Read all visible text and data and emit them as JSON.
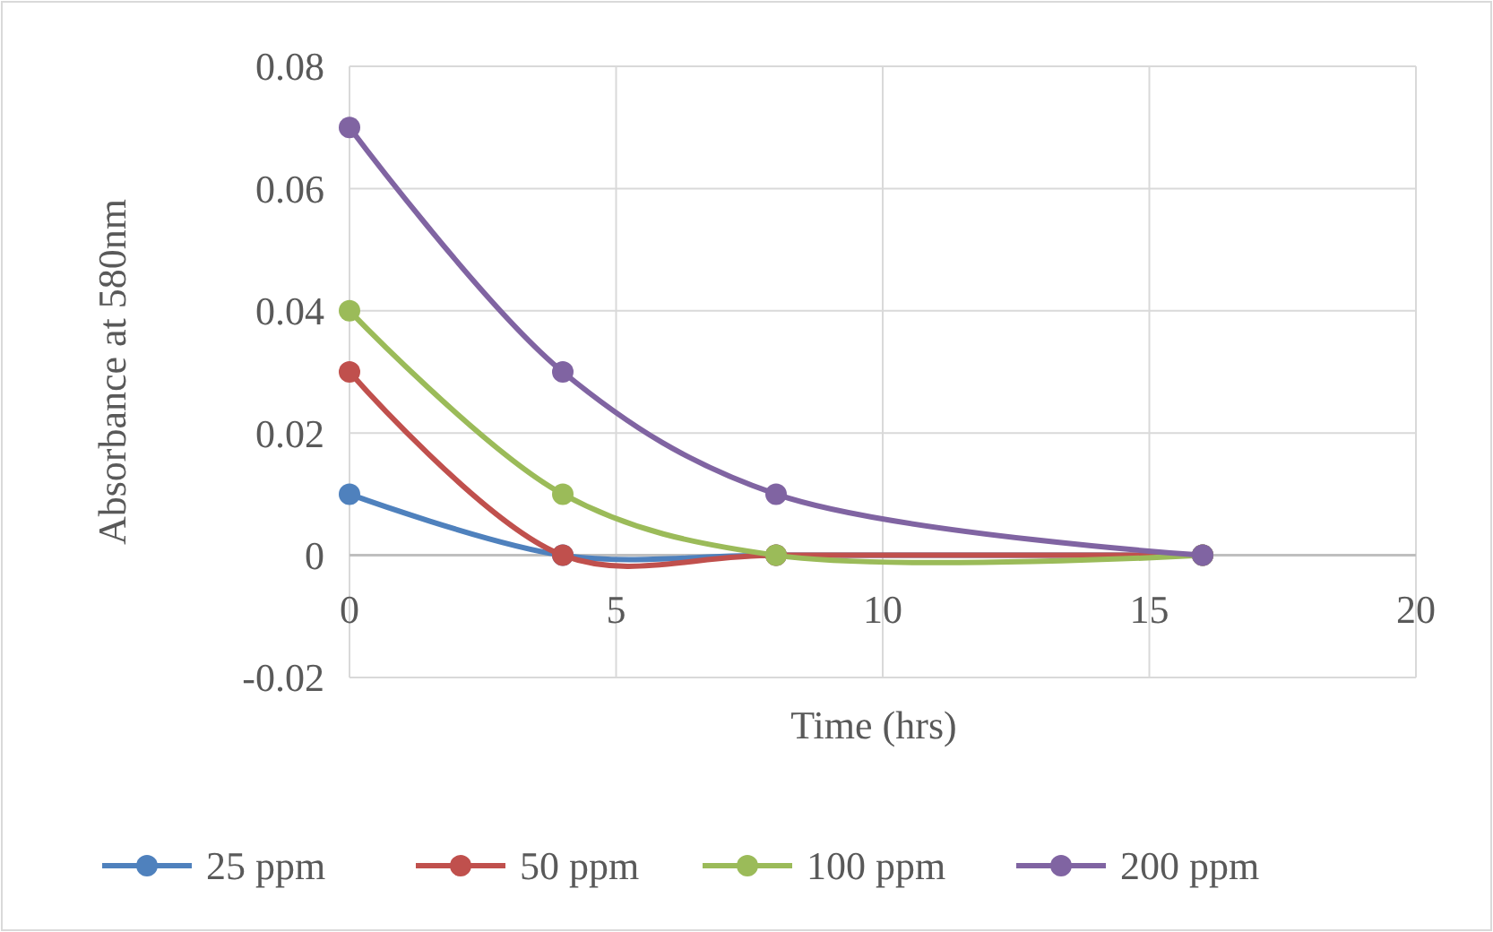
{
  "chart_data": {
    "type": "line",
    "xlabel": "Time (hrs)",
    "ylabel": "Absorbance at 580nm",
    "x": [
      0,
      4,
      8,
      16
    ],
    "series": [
      {
        "name": "25 ppm",
        "color": "#4f81bd",
        "values": [
          0.01,
          0,
          0,
          0
        ]
      },
      {
        "name": "50 ppm",
        "color": "#c0504d",
        "values": [
          0.03,
          0,
          0,
          0
        ]
      },
      {
        "name": "100 ppm",
        "color": "#9bbb59",
        "values": [
          0.04,
          0.01,
          0,
          0
        ]
      },
      {
        "name": "200 ppm",
        "color": "#8064a2",
        "values": [
          0.07,
          0.03,
          0.01,
          0
        ]
      }
    ],
    "xlim": [
      0,
      20
    ],
    "xticks": [
      0,
      5,
      10,
      15,
      20
    ],
    "ylim": [
      -0.02,
      0.08
    ],
    "yticks": [
      -0.02,
      0,
      0.02,
      0.04,
      0.06,
      0.08
    ],
    "grid": true,
    "legend": "bottom",
    "marker": "circle",
    "line_style": "solid"
  }
}
